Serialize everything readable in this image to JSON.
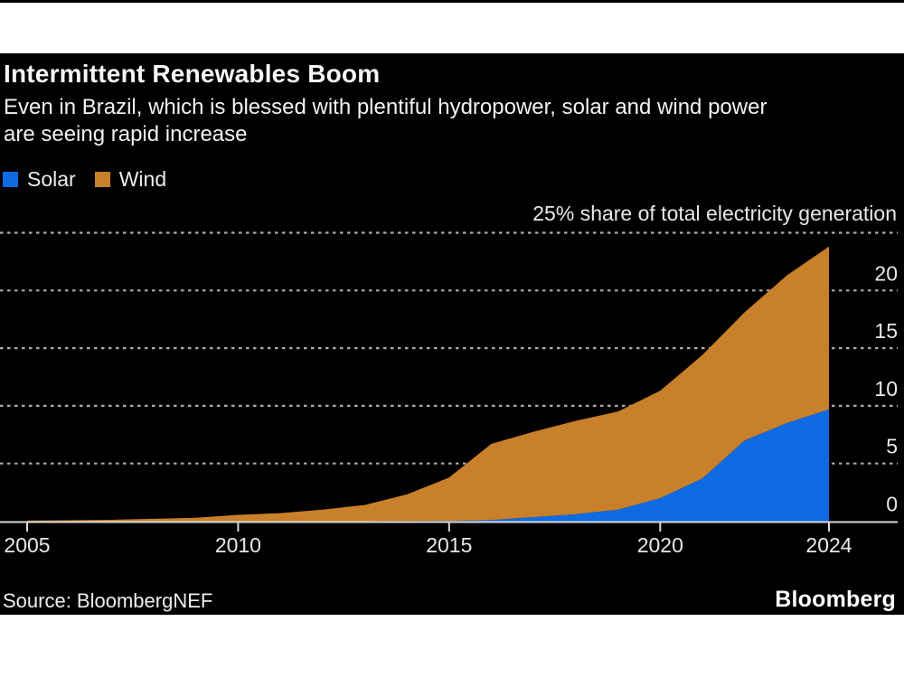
{
  "header": {
    "title": "Intermittent Renewables Boom",
    "subtitle_lines": [
      "Even in Brazil, which is blessed with plentiful hydropower, solar and wind power",
      "are seeing rapid increase"
    ]
  },
  "footer": {
    "source": "Source: BloombergNEF",
    "brand": "Bloomberg"
  },
  "colors": {
    "page_background": "#ffffff",
    "card_background": "#000000",
    "solar_blue": "#0f6be4",
    "wind_orange": "#c9802a",
    "gridline": "#ababab",
    "axis": "#d9d9d9",
    "text": "#f3f2ef"
  },
  "chart_data": {
    "type": "area",
    "stacked": true,
    "title": "Intermittent Renewables Boom",
    "subtitle": "Even in Brazil, which is blessed with plentiful hydropower, solar and wind power are seeing rapid increase",
    "top_axis_annotation": "25% share of total electricity generation",
    "ylabel": "% share of total electricity generation",
    "xlabel": "",
    "x": [
      2005,
      2006,
      2007,
      2008,
      2009,
      2010,
      2011,
      2012,
      2013,
      2014,
      2015,
      2016,
      2017,
      2018,
      2019,
      2020,
      2021,
      2022,
      2023,
      2024
    ],
    "series": [
      {
        "name": "Solar",
        "color": "#0f6be4",
        "values": [
          0,
          0,
          0,
          0,
          0,
          0,
          0,
          0,
          0,
          0.02,
          0.03,
          0.1,
          0.35,
          0.6,
          1.0,
          2.0,
          3.7,
          7.0,
          8.5,
          9.7
        ]
      },
      {
        "name": "Wind",
        "color": "#c9802a",
        "values": [
          0.05,
          0.08,
          0.12,
          0.2,
          0.3,
          0.55,
          0.7,
          1.0,
          1.4,
          2.3,
          3.75,
          6.6,
          7.4,
          8.1,
          8.5,
          9.3,
          10.7,
          11.1,
          12.8,
          14.1
        ]
      }
    ],
    "ylim": [
      0,
      25
    ],
    "yticks": [
      0,
      5,
      10,
      15,
      20
    ],
    "gridlines": [
      5,
      10,
      15,
      20,
      25
    ],
    "grid_style": "dashed-horizontal",
    "xticks": [
      2005,
      2010,
      2015,
      2020,
      2024
    ],
    "legend_position": "top-left",
    "legend_entries": [
      "Solar",
      "Wind"
    ]
  }
}
